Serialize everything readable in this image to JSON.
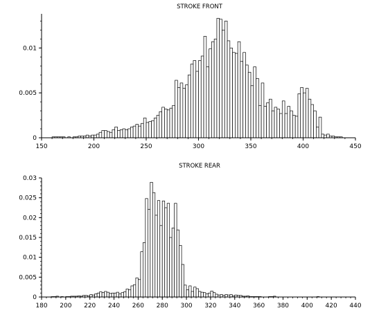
{
  "chart_data": [
    {
      "type": "bar",
      "title": "STROKE FRONT",
      "xlabel": "",
      "ylabel": "",
      "xlim": [
        150,
        450
      ],
      "ylim": [
        0,
        0.0138
      ],
      "x_ticks": [
        150,
        200,
        250,
        300,
        350,
        400,
        450
      ],
      "x_tick_labels": [
        "150",
        "200",
        "250",
        "300",
        "350",
        "400",
        "450"
      ],
      "y_ticks": [
        0,
        0.005,
        0.01
      ],
      "y_tick_labels": [
        "0",
        "0.005",
        "0.01"
      ],
      "bin_start": 160,
      "bin_width": 2.5,
      "values": [
        0.0001,
        0.0001,
        0.0001,
        0.0001,
        0.0001,
        0.0,
        0.0001,
        0.0,
        0.0001,
        0.0001,
        0.0002,
        0.0002,
        0.0002,
        0.0003,
        0.0002,
        0.0003,
        0.0003,
        0.0004,
        0.0006,
        0.0008,
        0.0008,
        0.0007,
        0.0006,
        0.0009,
        0.0012,
        0.0008,
        0.0009,
        0.001,
        0.0009,
        0.001,
        0.0012,
        0.0013,
        0.0015,
        0.0013,
        0.0016,
        0.0022,
        0.0017,
        0.0018,
        0.0019,
        0.0022,
        0.0025,
        0.0029,
        0.0034,
        0.0032,
        0.0031,
        0.0033,
        0.0036,
        0.0064,
        0.0056,
        0.0061,
        0.0055,
        0.0059,
        0.007,
        0.0082,
        0.0086,
        0.0074,
        0.0086,
        0.0091,
        0.0113,
        0.0079,
        0.0099,
        0.0107,
        0.011,
        0.0133,
        0.0132,
        0.012,
        0.013,
        0.0108,
        0.01,
        0.0095,
        0.0094,
        0.0107,
        0.0085,
        0.0095,
        0.0081,
        0.0073,
        0.0058,
        0.0079,
        0.0066,
        0.0036,
        0.0061,
        0.0035,
        0.0039,
        0.0043,
        0.003,
        0.0034,
        0.0032,
        0.0027,
        0.0041,
        0.0027,
        0.0035,
        0.003,
        0.0025,
        0.0024,
        0.0049,
        0.0056,
        0.005,
        0.0055,
        0.0043,
        0.0037,
        0.003,
        0.0012,
        0.0023,
        0.0004,
        0.0003,
        0.0004,
        0.0002,
        0.0002,
        0.0001,
        0.0001,
        0.0001
      ]
    },
    {
      "type": "bar",
      "title": "STROKE REAR",
      "xlabel": "",
      "ylabel": "",
      "xlim": [
        180,
        440
      ],
      "ylim": [
        0,
        0.03
      ],
      "x_ticks": [
        180,
        200,
        220,
        240,
        260,
        280,
        300,
        320,
        340,
        360,
        380,
        400,
        420,
        440
      ],
      "x_tick_labels": [
        "180",
        "200",
        "220",
        "240",
        "260",
        "280",
        "300",
        "320",
        "340",
        "360",
        "380",
        "400",
        "420",
        "440"
      ],
      "y_ticks": [
        0,
        0.005,
        0.01,
        0.015,
        0.02,
        0.025,
        0.03
      ],
      "y_tick_labels": [
        "0",
        "0.005",
        "0.01",
        "0.015",
        "0.02",
        "0.025",
        "0.03"
      ],
      "bin_start": 188,
      "bin_width": 2,
      "values": [
        0.0001,
        0.0001,
        0.0002,
        0.0,
        0.0001,
        0.0,
        0.0001,
        0.0001,
        0.0002,
        0.0002,
        0.0002,
        0.0003,
        0.0002,
        0.0004,
        0.0004,
        0.0003,
        0.0006,
        0.0005,
        0.0008,
        0.001,
        0.0013,
        0.0011,
        0.0014,
        0.0012,
        0.0009,
        0.001,
        0.001,
        0.0012,
        0.0008,
        0.0011,
        0.0013,
        0.002,
        0.0018,
        0.0028,
        0.0031,
        0.0048,
        0.0044,
        0.0114,
        0.0137,
        0.0248,
        0.0221,
        0.0289,
        0.0263,
        0.0206,
        0.0243,
        0.018,
        0.0242,
        0.0225,
        0.0236,
        0.015,
        0.0174,
        0.0236,
        0.0169,
        0.013,
        0.0082,
        0.003,
        0.0018,
        0.0028,
        0.0014,
        0.0025,
        0.0021,
        0.0014,
        0.0012,
        0.0011,
        0.0008,
        0.001,
        0.0015,
        0.0011,
        0.0007,
        0.0005,
        0.0006,
        0.0004,
        0.0006,
        0.0005,
        0.0006,
        0.0003,
        0.0005,
        0.0004,
        0.0004,
        0.0002,
        0.0002,
        0.0003,
        0.0001,
        0.0001,
        0.0001,
        0.0001,
        0.0001,
        0.0,
        0.0,
        0.0,
        0.0001,
        0.0001,
        0.0002,
        0.0,
        0.0,
        0.0,
        0.0,
        0.0,
        0.0,
        0.0,
        0.0,
        0.0,
        0.0,
        0.0,
        0.0,
        0.0,
        0.0,
        0.0,
        0.0,
        0.0,
        0.0001
      ]
    }
  ]
}
